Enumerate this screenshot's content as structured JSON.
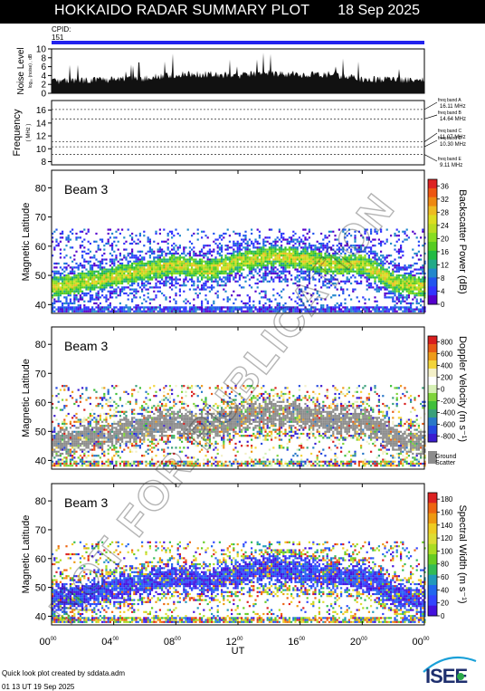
{
  "header": {
    "title": "HOKKAIDO RADAR SUMMARY PLOT",
    "date": "18 Sep 2025"
  },
  "cpid": {
    "label": "CPID:",
    "value": "151"
  },
  "watermark": "NOT FOR PUBLICATION",
  "footer": {
    "credit": "Quick look plot created by sddata.adm",
    "created": "01 13 UT 19 Sep 2025"
  },
  "logo": "ISEE",
  "colors": {
    "cpid_bar": "#2222ee",
    "ground_scatter": "#8c8c8c",
    "power_scale": [
      "#dd2222",
      "#ee5511",
      "#ee8811",
      "#eebb22",
      "#dddd22",
      "#bbdd22",
      "#88dd22",
      "#55cc22",
      "#22bb44",
      "#22aa88",
      "#2288cc",
      "#2255ee",
      "#3333ff",
      "#5500cc"
    ],
    "velocity_scale": [
      "#d81e1e",
      "#e85a16",
      "#ee9b1a",
      "#f2d43a",
      "#f4f0c8",
      "#ffffff",
      "#d6f0b6",
      "#7fd43a",
      "#3fbf3a",
      "#3aa07a",
      "#2878c8",
      "#2448e0",
      "#3a1cd0"
    ],
    "width_scale": [
      "#dd2222",
      "#ee6611",
      "#ee9911",
      "#eecc22",
      "#dddd33",
      "#aadd22",
      "#66cc22",
      "#33bb55",
      "#2299bb",
      "#2266ee",
      "#3344ff",
      "#4411dd"
    ]
  },
  "chart_data": [
    {
      "type": "area",
      "name": "noise-level",
      "ylabel": "Noise Level",
      "yunits": "log₁₀ (noise) , dB",
      "ylim": [
        0,
        10
      ],
      "yticks": [
        0,
        2,
        4,
        6,
        8,
        10
      ],
      "x": [
        0,
        2,
        4,
        6,
        8,
        10,
        12,
        14,
        16,
        18,
        20,
        22,
        24
      ],
      "values": [
        2.6,
        2.9,
        3.1,
        3.4,
        4.2,
        4.3,
        4.0,
        4.6,
        4.2,
        4.3,
        3.2,
        3.0,
        3.1
      ]
    },
    {
      "type": "line",
      "name": "frequency",
      "ylabel": "Frequency",
      "yunits": "( MHz )",
      "ylim": [
        7.5,
        17.5
      ],
      "yticks": [
        8,
        10,
        12,
        14,
        16
      ],
      "bands": [
        {
          "label": "freq band A",
          "value": "16.11 MHz",
          "mhz": 16.11
        },
        {
          "label": "freq band B",
          "value": "14.64 MHz",
          "mhz": 14.64
        },
        {
          "label": "freq band C",
          "value": "11.07 MHz",
          "mhz": 11.07
        },
        {
          "label": "freq band D",
          "value": "10.30 MHz",
          "mhz": 10.3
        },
        {
          "label": "freq band E",
          "value": "9.11 MHz",
          "mhz": 9.11
        }
      ]
    },
    {
      "type": "heatmap",
      "name": "backscatter-power",
      "beam": "Beam  3",
      "ylabel": "Magnetic Latitude",
      "ylim": [
        37,
        86
      ],
      "yticks": [
        40,
        50,
        60,
        70,
        80
      ],
      "colorbar_label": "Backscatter Power (dB)",
      "colorbar_ticks": [
        "0",
        "4",
        "8",
        "12",
        "16",
        "20",
        "24",
        "28",
        "32",
        "36"
      ],
      "colorbar_range": [
        0,
        38
      ],
      "band_center": [
        [
          0,
          46
        ],
        [
          4,
          50
        ],
        [
          8,
          54
        ],
        [
          10,
          52
        ],
        [
          12,
          55
        ],
        [
          14,
          57
        ],
        [
          16,
          56
        ],
        [
          18,
          54
        ],
        [
          20,
          54
        ],
        [
          22,
          48
        ],
        [
          24,
          46
        ]
      ],
      "coverage_ylim": [
        38,
        66
      ]
    },
    {
      "type": "heatmap",
      "name": "doppler-velocity",
      "beam": "Beam  3",
      "ylabel": "Magnetic Latitude",
      "ylim": [
        37,
        86
      ],
      "yticks": [
        40,
        50,
        60,
        70,
        80
      ],
      "colorbar_label": "Doppler Velocity (m s⁻¹)",
      "colorbar_ticks": [
        "800",
        "600",
        "400",
        "200",
        "0",
        "-200",
        "-400",
        "-600",
        "-800"
      ],
      "colorbar_range": [
        -900,
        900
      ],
      "ground_scatter_label": [
        "Ground",
        "Scatter"
      ],
      "coverage_ylim": [
        38,
        66
      ]
    },
    {
      "type": "heatmap",
      "name": "spectral-width",
      "beam": "Beam  3",
      "ylabel": "Magnetic Latitude",
      "ylim": [
        37,
        86
      ],
      "yticks": [
        40,
        50,
        60,
        70,
        80
      ],
      "colorbar_label": "Spectral Width (m s⁻¹)",
      "colorbar_ticks": [
        "0",
        "20",
        "40",
        "60",
        "80",
        "100",
        "120",
        "140",
        "160",
        "180"
      ],
      "colorbar_range": [
        0,
        190
      ],
      "coverage_ylim": [
        38,
        66
      ]
    }
  ],
  "xaxis": {
    "label": "UT",
    "range": [
      0,
      24
    ],
    "ticks": [
      {
        "h": 0,
        "base": "00",
        "sup": "00"
      },
      {
        "h": 4,
        "base": "04",
        "sup": "00"
      },
      {
        "h": 8,
        "base": "08",
        "sup": "00"
      },
      {
        "h": 12,
        "base": "12",
        "sup": "00"
      },
      {
        "h": 16,
        "base": "16",
        "sup": "00"
      },
      {
        "h": 20,
        "base": "20",
        "sup": "00"
      },
      {
        "h": 24,
        "base": "00",
        "sup": "00"
      }
    ]
  }
}
